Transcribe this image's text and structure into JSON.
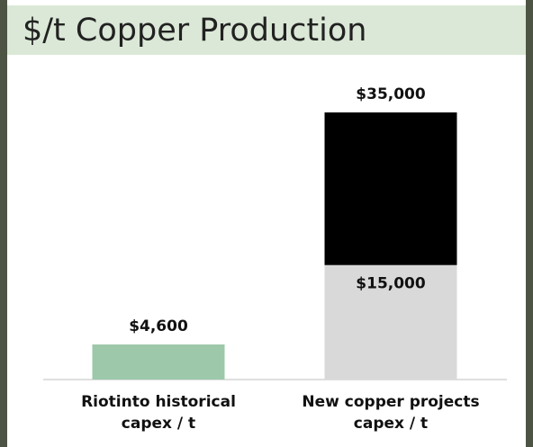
{
  "chart_data": {
    "type": "bar",
    "stacked": true,
    "title": "$/t Copper Production",
    "categories": [
      "Riotinto historical\ncapex / t",
      "New copper projects\ncapex / t"
    ],
    "series": [
      {
        "colors": [
          "#9dc8aa",
          "#d9d9d9"
        ],
        "values": [
          4600,
          15000
        ],
        "value_labels": [
          null,
          "$15,000"
        ]
      },
      {
        "color": "#000000",
        "values": [
          null,
          20000
        ]
      }
    ],
    "totals": {
      "values": [
        4600,
        35000
      ],
      "value_labels": [
        "$4,600",
        "$35,000"
      ]
    }
  }
}
